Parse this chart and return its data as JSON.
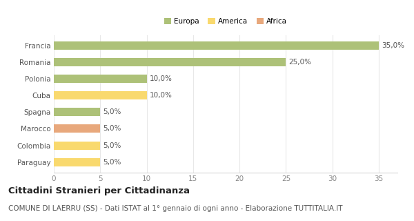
{
  "categories": [
    "Francia",
    "Romania",
    "Polonia",
    "Cuba",
    "Spagna",
    "Marocco",
    "Colombia",
    "Paraguay"
  ],
  "values": [
    35.0,
    25.0,
    10.0,
    10.0,
    5.0,
    5.0,
    5.0,
    5.0
  ],
  "colors": [
    "#adc178",
    "#adc178",
    "#adc178",
    "#f9d96e",
    "#adc178",
    "#e8a87c",
    "#f9d96e",
    "#f9d96e"
  ],
  "continents": [
    "Europa",
    "Europa",
    "Europa",
    "America",
    "Europa",
    "Africa",
    "America",
    "America"
  ],
  "legend": {
    "Europa": "#adc178",
    "America": "#f9d96e",
    "Africa": "#e8a87c"
  },
  "xlim": [
    0,
    37
  ],
  "xticks": [
    0,
    5,
    10,
    15,
    20,
    25,
    30,
    35
  ],
  "title": "Cittadini Stranieri per Cittadinanza",
  "subtitle": "COMUNE DI LAERRU (SS) - Dati ISTAT al 1° gennaio di ogni anno - Elaborazione TUTTITALIA.IT",
  "title_fontsize": 9.5,
  "subtitle_fontsize": 7.5,
  "label_fontsize": 7.5,
  "tick_fontsize": 7.5,
  "bar_height": 0.5,
  "background_color": "#ffffff",
  "grid_color": "#e8e8e8"
}
